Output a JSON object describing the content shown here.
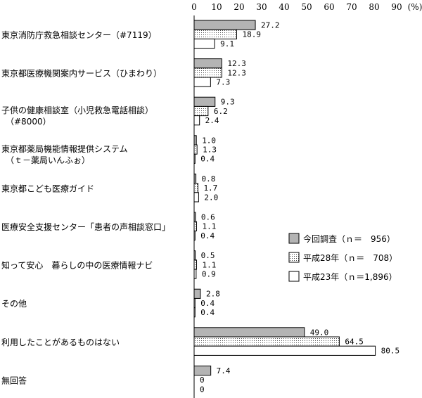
{
  "chart_data": {
    "type": "bar",
    "orientation": "horizontal",
    "unit_label": "(%)",
    "xlim": [
      0,
      90
    ],
    "xticks": [
      0,
      10,
      20,
      30,
      40,
      50,
      60,
      70,
      80,
      90
    ],
    "grid": false,
    "legend_position": "right",
    "categories": [
      [
        "東京消防庁救急相談センター（#7119）"
      ],
      [
        "東京都医療機関案内サービス（ひまわり）"
      ],
      [
        "子供の健康相談室（小児救急電話相談）",
        "（#8000）"
      ],
      [
        "東京都薬局機能情報提供システム",
        "（ｔ－薬局いんふぉ）"
      ],
      [
        "東京都こども医療ガイド"
      ],
      [
        "医療安全支援センター「患者の声相談窓口」"
      ],
      [
        "知って安心　暮らしの中の医療情報ナビ"
      ],
      [
        "その他"
      ],
      [
        "利用したことがあるものはない"
      ],
      [
        "無回答"
      ]
    ],
    "series": [
      {
        "name": "今回調査（ｎ＝　956）",
        "fill": "gray",
        "values": [
          27.2,
          12.3,
          9.3,
          1.0,
          0.8,
          0.6,
          0.5,
          2.8,
          49.0,
          7.4
        ]
      },
      {
        "name": "平成28年（ｎ＝　708）",
        "fill": "dotted",
        "values": [
          18.9,
          12.3,
          6.2,
          1.3,
          1.7,
          1.1,
          1.1,
          0.4,
          64.5,
          0
        ]
      },
      {
        "name": "平成23年（ｎ＝1,896）",
        "fill": "white",
        "values": [
          9.1,
          7.3,
          2.4,
          0.4,
          2.0,
          0.4,
          0.9,
          0.4,
          80.5,
          0
        ]
      }
    ],
    "colors": {
      "gray": "#b4b4b4",
      "dotted_base": "#ffffff",
      "dotted_dot": "#444444",
      "white": "#ffffff",
      "stroke": "#000000"
    }
  }
}
